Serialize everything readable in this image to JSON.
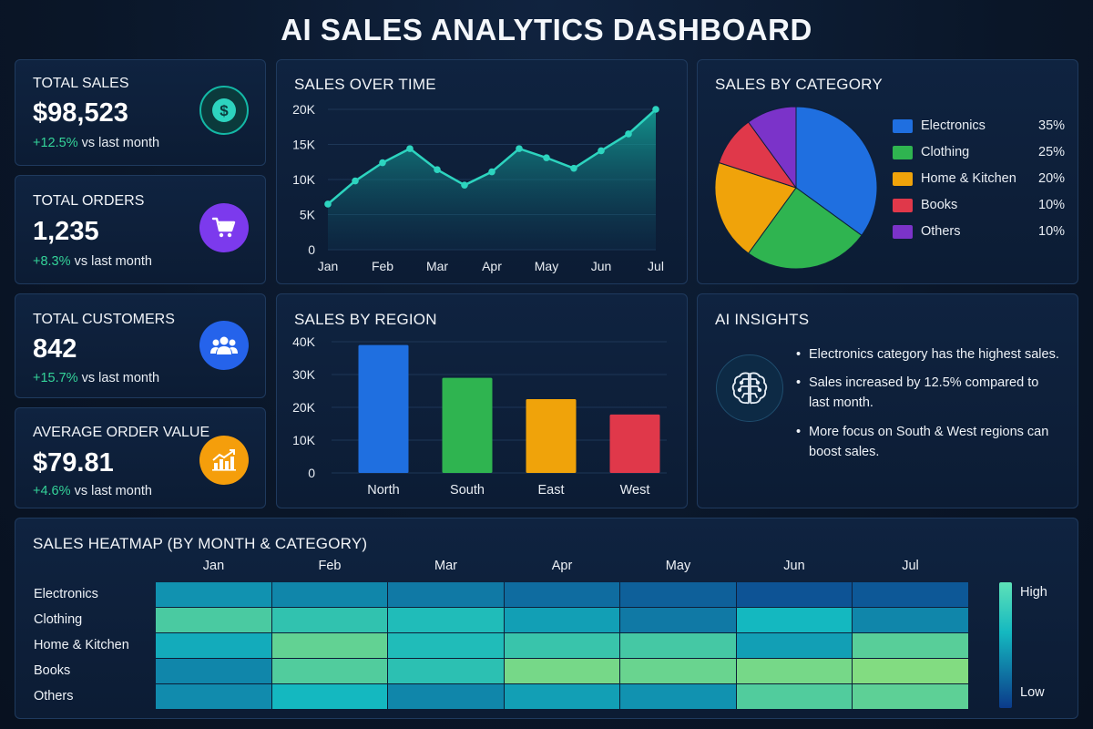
{
  "title": "AI SALES ANALYTICS DASHBOARD",
  "kpis": [
    {
      "label": "TOTAL SALES",
      "value": "$98,523",
      "change": "+12.5%",
      "suffix": "vs last month",
      "icon": "dollar-icon",
      "color": "#0f766e"
    },
    {
      "label": "TOTAL ORDERS",
      "value": "1,235",
      "change": "+8.3%",
      "suffix": "vs last month",
      "icon": "cart-icon",
      "color": "#7c3aed"
    },
    {
      "label": "TOTAL CUSTOMERS",
      "value": "842",
      "change": "+15.7%",
      "suffix": "vs last month",
      "icon": "users-icon",
      "color": "#2563eb"
    },
    {
      "label": "AVERAGE ORDER VALUE",
      "value": "$79.81",
      "change": "+4.6%",
      "suffix": "vs last month",
      "icon": "chart-growth-icon",
      "color": "#f59e0b"
    }
  ],
  "sales_over_time": {
    "title": "SALES OVER TIME"
  },
  "sales_by_category": {
    "title": "SALES BY CATEGORY"
  },
  "sales_by_region": {
    "title": "SALES BY REGION"
  },
  "ai_insights": {
    "title": "AI INSIGHTS",
    "icon": "brain-icon",
    "items": [
      "Electronics category has the highest sales.",
      "Sales increased by 12.5% compared to last month.",
      "More focus on South & West regions can boost sales."
    ]
  },
  "heatmap": {
    "title": "SALES HEATMAP (BY MONTH & CATEGORY)",
    "high_label": "High",
    "low_label": "Low"
  },
  "chart_data": [
    {
      "type": "area",
      "title": "SALES OVER TIME",
      "categories": [
        "Jan",
        "",
        "Feb",
        "",
        "Mar",
        "",
        "Apr",
        "",
        "May",
        "",
        "Jun",
        "",
        "Jul"
      ],
      "tick_labels": [
        "Jan",
        "Feb",
        "Mar",
        "Apr",
        "May",
        "Jun",
        "Jul"
      ],
      "values": [
        6500,
        9800,
        12400,
        14400,
        11400,
        9200,
        11100,
        14400,
        13100,
        11600,
        14100,
        16500,
        20000
      ],
      "ylim": [
        0,
        20000
      ],
      "yticks": [
        "0",
        "5K",
        "10K",
        "15K",
        "20K"
      ],
      "color": "#2dd4bf"
    },
    {
      "type": "pie",
      "title": "SALES BY CATEGORY",
      "categories": [
        "Electronics",
        "Clothing",
        "Home & Kitchen",
        "Books",
        "Others"
      ],
      "values": [
        35,
        25,
        20,
        10,
        10
      ],
      "labels": [
        "35%",
        "25%",
        "20%",
        "10%",
        "10%"
      ],
      "colors": [
        "#1f6fe0",
        "#2fb450",
        "#f0a30a",
        "#e0384a",
        "#7b33c9"
      ],
      "legend": "right"
    },
    {
      "type": "bar",
      "title": "SALES BY REGION",
      "categories": [
        "North",
        "South",
        "East",
        "West"
      ],
      "values": [
        39000,
        29000,
        22500,
        17800
      ],
      "ylim": [
        0,
        40000
      ],
      "yticks": [
        "0",
        "10K",
        "20K",
        "30K",
        "40K"
      ],
      "colors": [
        "#1f6fe0",
        "#2fb450",
        "#f0a30a",
        "#e0384a"
      ]
    },
    {
      "type": "heatmap",
      "title": "SALES HEATMAP (BY MONTH & CATEGORY)",
      "x": [
        "Jan",
        "Feb",
        "Mar",
        "Apr",
        "May",
        "Jun",
        "Jul"
      ],
      "y": [
        "Electronics",
        "Clothing",
        "Home & Kitchen",
        "Books",
        "Others"
      ],
      "values": [
        [
          0.35,
          0.3,
          0.25,
          0.2,
          0.15,
          0.1,
          0.12
        ],
        [
          0.72,
          0.62,
          0.55,
          0.4,
          0.25,
          0.5,
          0.3
        ],
        [
          0.45,
          0.82,
          0.55,
          0.65,
          0.7,
          0.4,
          0.78
        ],
        [
          0.3,
          0.75,
          0.6,
          0.9,
          0.85,
          0.9,
          0.95
        ],
        [
          0.32,
          0.5,
          0.3,
          0.4,
          0.35,
          0.75,
          0.8
        ]
      ],
      "colorscale": [
        "#0b3a8a",
        "#14b8c0",
        "#8ee07a"
      ]
    }
  ]
}
